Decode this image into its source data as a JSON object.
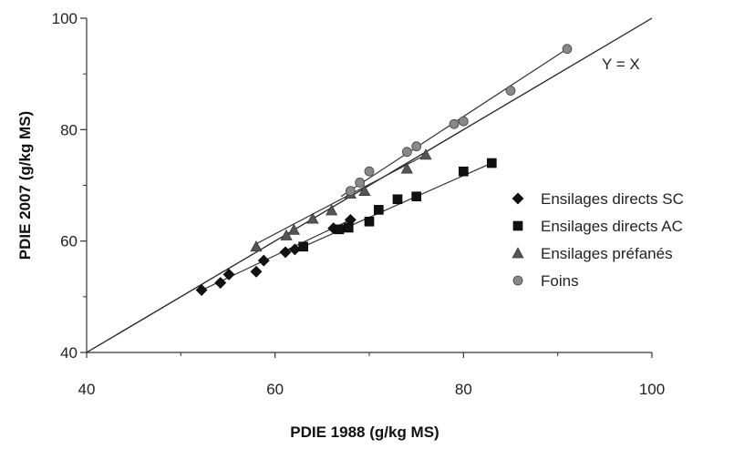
{
  "chart_data": {
    "type": "scatter",
    "title": "",
    "xlabel": "PDIE 1988 (g/kg MS)",
    "ylabel": "PDIE 2007 (g/kg MS)",
    "xlim": [
      40,
      100
    ],
    "ylim": [
      40,
      100
    ],
    "xticks": [
      40,
      60,
      80,
      100
    ],
    "yticks": [
      40,
      60,
      80,
      100
    ],
    "grid": false,
    "legend_position": "right",
    "reference_line": {
      "label": "Y = X",
      "from": [
        40,
        40
      ],
      "to": [
        100,
        100
      ]
    },
    "series": [
      {
        "name": "Ensilages directs SC",
        "marker": "diamond",
        "color": "#111111",
        "points": [
          [
            52.2,
            51.2
          ],
          [
            54.2,
            52.5
          ],
          [
            55.1,
            54.0
          ],
          [
            58.0,
            54.5
          ],
          [
            58.8,
            56.5
          ],
          [
            61.1,
            58.0
          ],
          [
            62.1,
            58.5
          ],
          [
            66.2,
            62.3
          ],
          [
            68.0,
            63.8
          ]
        ],
        "trend": [
          [
            52.0,
            51.0
          ],
          [
            68.0,
            63.8
          ]
        ]
      },
      {
        "name": "Ensilages directs AC",
        "marker": "square",
        "color": "#111111",
        "points": [
          [
            63.0,
            59.0
          ],
          [
            66.8,
            62.1
          ],
          [
            67.8,
            62.4
          ],
          [
            70.0,
            63.5
          ],
          [
            71.0,
            65.6
          ],
          [
            73.0,
            67.5
          ],
          [
            75.0,
            68.0
          ],
          [
            80.0,
            72.5
          ],
          [
            83.0,
            74.0
          ]
        ],
        "trend": [
          [
            63.0,
            59.0
          ],
          [
            83.0,
            74.0
          ]
        ]
      },
      {
        "name": "Ensilages préfanés",
        "marker": "triangle",
        "color": "#555555",
        "points": [
          [
            58.0,
            59.0
          ],
          [
            61.2,
            61.0
          ],
          [
            62.0,
            62.0
          ],
          [
            64.0,
            64.0
          ],
          [
            66.0,
            65.5
          ],
          [
            68.0,
            68.5
          ],
          [
            69.5,
            69.0
          ],
          [
            74.0,
            73.0
          ],
          [
            76.0,
            75.5
          ]
        ],
        "trend": [
          [
            58.0,
            59.5
          ],
          [
            76.0,
            75.5
          ]
        ]
      },
      {
        "name": "Foins",
        "marker": "circle",
        "color": "#888888",
        "points": [
          [
            68.0,
            69.0
          ],
          [
            69.0,
            70.5
          ],
          [
            70.0,
            72.5
          ],
          [
            74.0,
            76.0
          ],
          [
            75.0,
            77.0
          ],
          [
            79.0,
            81.0
          ],
          [
            80.0,
            81.5
          ],
          [
            85.0,
            87.0
          ],
          [
            91.0,
            94.5
          ]
        ],
        "trend": [
          [
            67.0,
            68.0
          ],
          [
            91.0,
            94.5
          ]
        ]
      }
    ]
  }
}
